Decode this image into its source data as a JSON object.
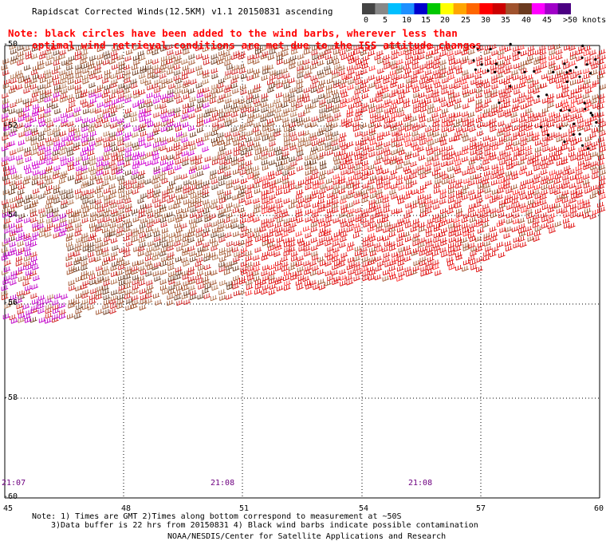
{
  "header": {
    "title": "Rapidscat Corrected Winds(12.5KM) v1.1 20150831 ascending",
    "note_line1": "Note: black circles have been added to the wind barbs, wherever less than",
    "note_line2": "optimal wind retrieval conditions are met due to the ISS attitude changes"
  },
  "legend": {
    "colors": [
      "#444444",
      "#888888",
      "#00bfff",
      "#1e90ff",
      "#0000cd",
      "#00c800",
      "#ffff00",
      "#ffa500",
      "#ff6600",
      "#ff0000",
      "#cc0000",
      "#a0522d",
      "#6b3a1f",
      "#ff00ff",
      "#a000c8",
      "#4b0082"
    ],
    "labels": [
      "0",
      "5",
      "10",
      "15",
      "20",
      "25",
      "30",
      "35",
      "40",
      "45",
      ">50 knots"
    ]
  },
  "axes": {
    "lat_labels": [
      "-50",
      "-52",
      "-54",
      "-56",
      "-58",
      "-60"
    ],
    "lon_labels": [
      "45",
      "48",
      "51",
      "54",
      "57",
      "60"
    ]
  },
  "times": [
    "21:07",
    "21:08",
    "21:08"
  ],
  "footer": {
    "line1": "Note: 1) Times are GMT 2)Times along bottom correspond to measurement at ~50S",
    "line2": "3)Data buffer is 22 hrs from 20150831 4) Black wind barbs indicate possible contamination",
    "line3": "NOAA/NESDIS/Center for Satellite Applications and Research"
  }
}
